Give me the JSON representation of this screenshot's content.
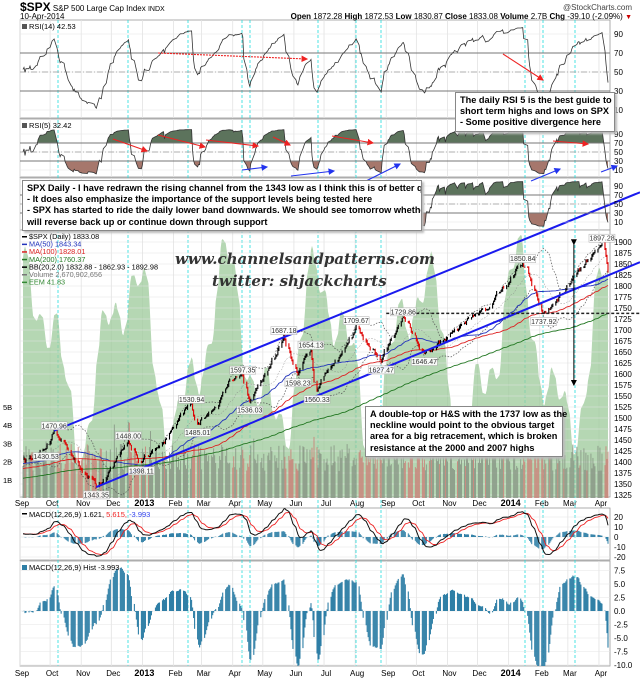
{
  "header": {
    "symbol": "$SPX",
    "name": "S&P 500 Large Cap Index",
    "exchange": "INDX",
    "date": "10-Apr-2014",
    "brand": "@StockCharts.com",
    "open_label": "Open",
    "open": "1872.28",
    "high_label": "High",
    "high": "1872.53",
    "low_label": "Low",
    "low": "1830.87",
    "close_label": "Close",
    "close": "1833.08",
    "volume_label": "Volume",
    "volume": "2.7B",
    "chg_label": "Chg",
    "chg": "-39.10 (-2.09%)",
    "chg_color": "#cc0000"
  },
  "annotations": {
    "rsi_note": [
      "The daily RSI 5 is the best guide to",
      "short term highs and lows on SPX",
      "- Some positive divergence here"
    ],
    "main_note": [
      "SPX Daily - I have redrawn the rising channel from the 1343 low as I think this is of better quality",
      "- It does also emphasize the importance of the support levels being tested here",
      "- SPX has started to ride the daily lower band downwards. We should see tomorrow whether SPX",
      "will reverse back up or continue down through support"
    ],
    "bottom_note": [
      "A double-top or H&S with the 1737 low as the",
      "neckline would point to the obvious target",
      "area for a big retracement, which is broken",
      "resistance at the 2000 and 2007 highs"
    ]
  },
  "watermark": {
    "site": "www.channelsandpatterns.com",
    "twitter": "twitter: shjackcharts"
  },
  "chart_data": {
    "type": "line",
    "subtype": "candlestick-with-indicators",
    "x_ticks": [
      {
        "label": "Sep",
        "date": "2012-09-01"
      },
      {
        "label": "Oct",
        "date": "2012-10-01"
      },
      {
        "label": "Nov",
        "date": "2012-11-01"
      },
      {
        "label": "Dec",
        "date": "2012-12-01"
      },
      {
        "label": "2013",
        "date": "2013-01-01"
      },
      {
        "label": "Feb",
        "date": "2013-02-01"
      },
      {
        "label": "Mar",
        "date": "2013-03-01"
      },
      {
        "label": "Apr",
        "date": "2013-04-01"
      },
      {
        "label": "May",
        "date": "2013-05-01"
      },
      {
        "label": "Jun",
        "date": "2013-06-01"
      },
      {
        "label": "Jul",
        "date": "2013-07-01"
      },
      {
        "label": "Aug",
        "date": "2013-08-01"
      },
      {
        "label": "Sep",
        "date": "2013-09-01"
      },
      {
        "label": "Oct",
        "date": "2013-10-01"
      },
      {
        "label": "Nov",
        "date": "2013-11-01"
      },
      {
        "label": "Dec",
        "date": "2013-12-01"
      },
      {
        "label": "2014",
        "date": "2014-01-01"
      },
      {
        "label": "Feb",
        "date": "2014-02-01"
      },
      {
        "label": "Mar",
        "date": "2014-03-01"
      },
      {
        "label": "Apr",
        "date": "2014-04-01"
      }
    ],
    "x_range": [
      "2012-09-04",
      "2014-04-10"
    ],
    "grid": true,
    "rsi14": {
      "label": "RSI(14)",
      "value": "42.53",
      "ticks": [
        90,
        70,
        50,
        30,
        10
      ],
      "levels": [
        70,
        50,
        30
      ]
    },
    "rsi5": {
      "label": "RSI(5)",
      "value": "32.42",
      "ticks": [
        90,
        70,
        50,
        30,
        10
      ],
      "levels": [
        70,
        50,
        30
      ]
    },
    "rsi_extra": {
      "ticks": [
        90,
        70,
        50,
        30,
        10
      ],
      "levels": [
        70,
        50,
        30
      ]
    },
    "price": {
      "legend": [
        {
          "text": "$SPX (Daily) 1833.08",
          "color": "#000000"
        },
        {
          "text": "MA(50) 1843.34",
          "color": "#2233bb"
        },
        {
          "text": "MA(100) 1828.01",
          "color": "#dd2222"
        },
        {
          "text": "MA(200) 1760.37",
          "color": "#227722"
        },
        {
          "text": "BB(20,2.0) 1832.88 - 1862.93 - 1892.98",
          "color": "#000000"
        },
        {
          "text": "Volume 2,670,902,656",
          "color": "#777777"
        },
        {
          "text": "EEM 41.83",
          "color": "#338833"
        }
      ],
      "y_ticks": [
        1900,
        1875,
        1850,
        1825,
        1800,
        1775,
        1750,
        1725,
        1700,
        1675,
        1650,
        1625,
        1600,
        1575,
        1550,
        1525,
        1500,
        1475,
        1450,
        1425,
        1400,
        1375,
        1350,
        1325
      ],
      "volume_ticks": [
        "5B",
        "4B",
        "3B",
        "2B",
        "1B"
      ],
      "ylim": [
        1300,
        1925
      ],
      "start": {
        "date": "2012-09-04",
        "value": 1405
      },
      "pivots": [
        {
          "date": "2012-09-27",
          "value": 1430.53,
          "kind": "low"
        },
        {
          "date": "2012-10-05",
          "value": 1470.96,
          "kind": "high"
        },
        {
          "date": "2012-11-16",
          "value": 1343.35,
          "kind": "low"
        },
        {
          "date": "2012-12-18",
          "value": 1448.0,
          "kind": "high"
        },
        {
          "date": "2012-12-31",
          "value": 1398.11,
          "kind": "low"
        },
        {
          "date": "2013-02-19",
          "value": 1530.94,
          "kind": "high"
        },
        {
          "date": "2013-02-25",
          "value": 1485.01,
          "kind": "low"
        },
        {
          "date": "2013-04-11",
          "value": 1597.35,
          "kind": "high"
        },
        {
          "date": "2013-04-18",
          "value": 1536.03,
          "kind": "low"
        },
        {
          "date": "2013-05-22",
          "value": 1687.18,
          "kind": "high"
        },
        {
          "date": "2013-06-05",
          "value": 1598.23,
          "kind": "low"
        },
        {
          "date": "2013-06-18",
          "value": 1654.13,
          "kind": "high"
        },
        {
          "date": "2013-06-24",
          "value": 1560.33,
          "kind": "low"
        },
        {
          "date": "2013-08-02",
          "value": 1709.67,
          "kind": "high"
        },
        {
          "date": "2013-08-27",
          "value": 1627.47,
          "kind": "low"
        },
        {
          "date": "2013-09-18",
          "value": 1729.86,
          "kind": "high"
        },
        {
          "date": "2013-10-09",
          "value": 1646.47,
          "kind": "low"
        },
        {
          "date": "2014-01-15",
          "value": 1850.84,
          "kind": "high"
        },
        {
          "date": "2014-02-05",
          "value": 1737.92,
          "kind": "low"
        },
        {
          "date": "2014-04-04",
          "value": 1897.28,
          "kind": "high"
        }
      ],
      "last": {
        "date": "2014-04-10",
        "value": 1833.08
      },
      "channel_upper": [
        {
          "date": "2012-10-05",
          "value": 1471
        },
        {
          "date": "2014-04-30",
          "value": 2002
        }
      ],
      "channel_lower": [
        {
          "date": "2012-11-16",
          "value": 1343
        },
        {
          "date": "2014-04-30",
          "value": 1843
        }
      ],
      "channel_color": "#1a1aee",
      "neckline": {
        "value": 1737.92,
        "from": "2013-09-01"
      },
      "target_arrow": {
        "date": "2014-03-07",
        "from": 1895,
        "to": 1575
      }
    },
    "macd": {
      "label": "MACD(12,26,9)",
      "values": [
        "1.621",
        "5.615",
        "-3.993"
      ],
      "colors": [
        "#000000",
        "#ee2222",
        "#3344ee"
      ],
      "ticks": [
        20,
        10,
        0,
        -10,
        -20
      ]
    },
    "macd_hist": {
      "label": "MACD(12,26,9) Hist",
      "value": "-3.993",
      "ticks": [
        "7.5",
        "5.0",
        "2.5",
        "0.0",
        "-2.5",
        "-5.0",
        "-7.5",
        "-10.0"
      ],
      "color": "#2f7fa6"
    }
  }
}
